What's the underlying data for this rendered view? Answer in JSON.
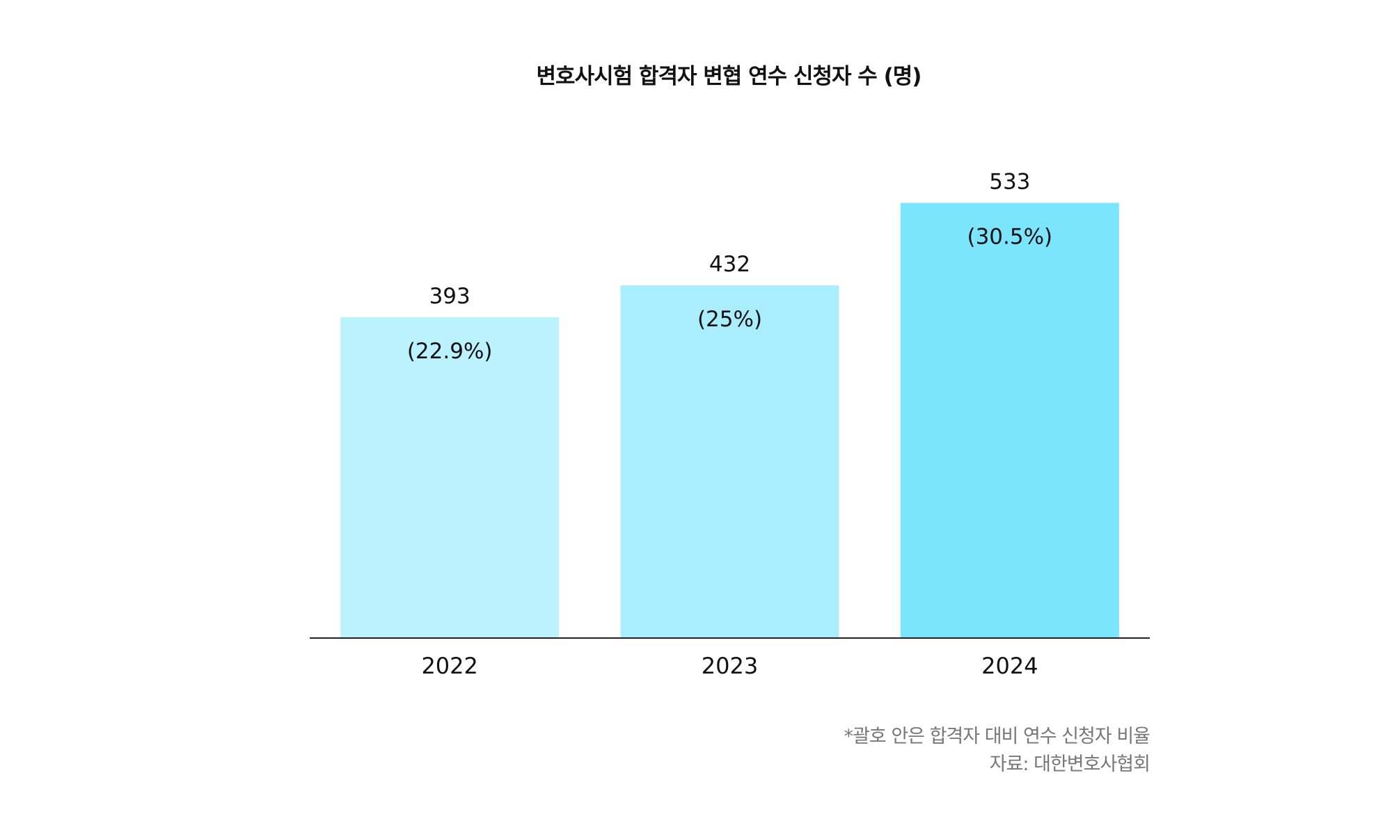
{
  "chart_data": {
    "type": "bar",
    "title": "변호사시험 합격자 변협 연수 신청자 수 (명)",
    "categories": [
      "2022",
      "2023",
      "2024"
    ],
    "values": [
      393,
      432,
      533
    ],
    "data_labels": [
      "393",
      "432",
      "533"
    ],
    "secondary_labels": [
      "(22.9%)",
      "(25%)",
      "(30.5%)"
    ],
    "colors": [
      "#bbf2fe",
      "#aaeefd",
      "#7ae5fd"
    ],
    "ylim": [
      0,
      600
    ],
    "grid": false,
    "legend": "none",
    "xlabel": "",
    "ylabel": ""
  },
  "footnotes": {
    "note": "*괄호 안은 합격자 대비 연수 신청자 비율",
    "source": "자료: 대한변호사협회"
  }
}
